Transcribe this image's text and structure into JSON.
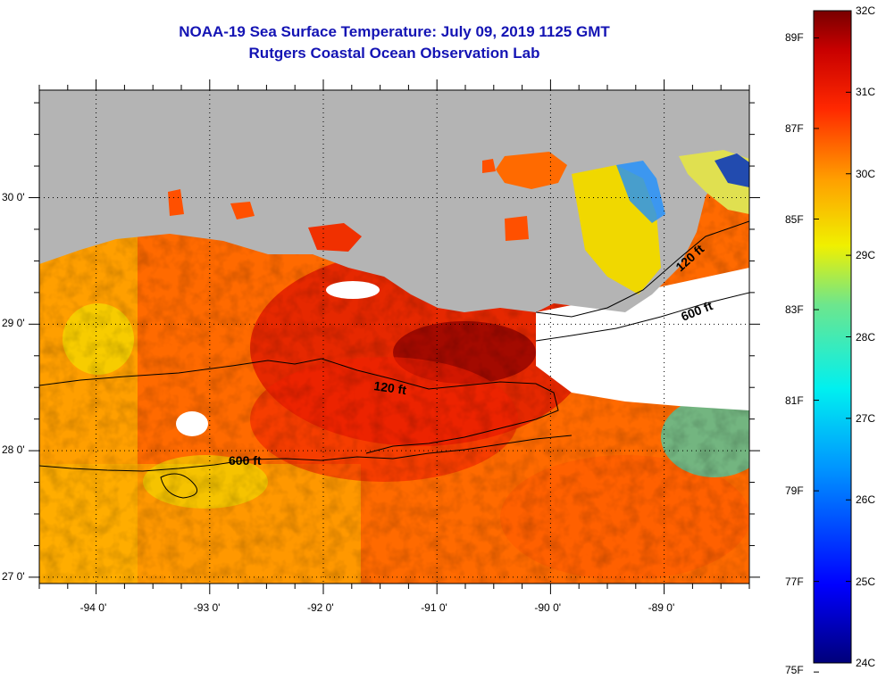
{
  "title": {
    "line1": "NOAA-19 Sea Surface Temperature:  July 09, 2019 1125 GMT",
    "line2": "Rutgers Coastal Ocean Observation Lab"
  },
  "map": {
    "lon_range": [
      -94.5,
      -88.25
    ],
    "lat_range": [
      26.95,
      30.85
    ],
    "lat_labels": [
      {
        "value": 30,
        "text": "30 0'"
      },
      {
        "value": 29,
        "text": "29 0'"
      },
      {
        "value": 28,
        "text": "28 0'"
      },
      {
        "value": 27,
        "text": "27 0'"
      }
    ],
    "lon_labels": [
      {
        "value": -94,
        "text": "-94 0'"
      },
      {
        "value": -93,
        "text": "-93 0'"
      },
      {
        "value": -92,
        "text": "-92 0'"
      },
      {
        "value": -91,
        "text": "-91 0'"
      },
      {
        "value": -90,
        "text": "-90 0'"
      },
      {
        "value": -89,
        "text": "-89 0'"
      }
    ],
    "contour_labels": [
      "120 ft",
      "600 ft"
    ],
    "colors": {
      "land": "#b4b4b4",
      "no_data": "#ffffff",
      "contour": "#000000",
      "grid": "#000000"
    }
  },
  "colorbar": {
    "min_c": 24,
    "max_c": 32,
    "celsius_labels": [
      {
        "value": 32,
        "text": "32C"
      },
      {
        "value": 31,
        "text": "31C"
      },
      {
        "value": 30,
        "text": "30C"
      },
      {
        "value": 29,
        "text": "29C"
      },
      {
        "value": 28,
        "text": "28C"
      },
      {
        "value": 27,
        "text": "27C"
      },
      {
        "value": 26,
        "text": "26C"
      },
      {
        "value": 25,
        "text": "25C"
      },
      {
        "value": 24,
        "text": "24C"
      }
    ],
    "fahrenheit_labels": [
      {
        "value": 89,
        "text": "89F"
      },
      {
        "value": 87,
        "text": "87F"
      },
      {
        "value": 85,
        "text": "85F"
      },
      {
        "value": 83,
        "text": "83F"
      },
      {
        "value": 81,
        "text": "81F"
      },
      {
        "value": 79,
        "text": "79F"
      },
      {
        "value": 77,
        "text": "77F"
      },
      {
        "value": 75,
        "text": "75F"
      }
    ],
    "color_stops": [
      {
        "t": 0.0,
        "color": "#00007a"
      },
      {
        "t": 0.12,
        "color": "#0000ff"
      },
      {
        "t": 0.3,
        "color": "#0096ff"
      },
      {
        "t": 0.42,
        "color": "#00f0f0"
      },
      {
        "t": 0.55,
        "color": "#6ee68c"
      },
      {
        "t": 0.64,
        "color": "#f0f000"
      },
      {
        "t": 0.74,
        "color": "#ffa000"
      },
      {
        "t": 0.85,
        "color": "#ff2800"
      },
      {
        "t": 0.94,
        "color": "#c80000"
      },
      {
        "t": 1.0,
        "color": "#780000"
      }
    ]
  }
}
